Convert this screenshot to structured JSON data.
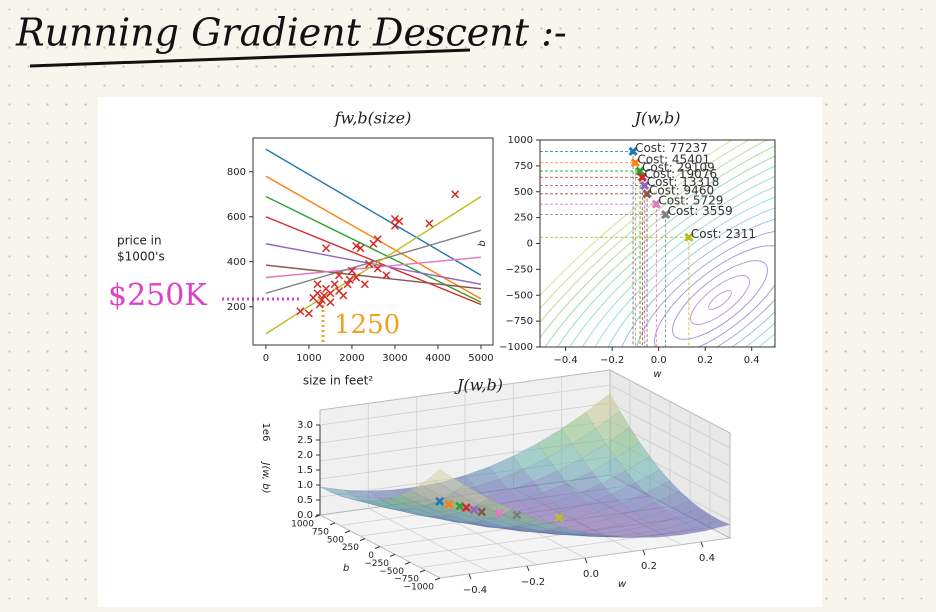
{
  "header": {
    "title": "Running Gradient Descent :-"
  },
  "annotations": {
    "price": "$250K",
    "size": "1250"
  },
  "chart_data": [
    {
      "type": "scatter",
      "title": "fw,b(size)",
      "xlabel": "size in feet²",
      "ylabel": [
        "price in",
        "$1000's"
      ],
      "xlim": [
        -300,
        5280
      ],
      "ylim": [
        30,
        950
      ],
      "xticks": [
        0,
        1000,
        2000,
        3000,
        4000,
        5000
      ],
      "yticks": [
        200,
        400,
        600,
        800
      ],
      "series": [
        {
          "color": "#1f77b4",
          "x": [
            0,
            5000
          ],
          "values": [
            900,
            340
          ]
        },
        {
          "color": "#ff7f0e",
          "x": [
            0,
            5000
          ],
          "values": [
            780,
            235
          ]
        },
        {
          "color": "#2ca02c",
          "x": [
            0,
            5000
          ],
          "values": [
            690,
            220
          ]
        },
        {
          "color": "#d62728",
          "x": [
            0,
            5000
          ],
          "values": [
            600,
            210
          ]
        },
        {
          "color": "#9467bd",
          "x": [
            0,
            5000
          ],
          "values": [
            480,
            300
          ]
        },
        {
          "color": "#8c564b",
          "x": [
            0,
            5000
          ],
          "values": [
            385,
            280
          ]
        },
        {
          "color": "#e377c2",
          "x": [
            0,
            5000
          ],
          "values": [
            330,
            420
          ]
        },
        {
          "color": "#7f7f7f",
          "x": [
            0,
            5000
          ],
          "values": [
            260,
            540
          ]
        },
        {
          "color": "#bcbd22",
          "x": [
            0,
            5000
          ],
          "values": [
            80,
            690
          ]
        }
      ],
      "points": {
        "color": "#d62728",
        "x": [
          800,
          1000,
          1100,
          1200,
          1200,
          1250,
          1300,
          1350,
          1400,
          1500,
          1500,
          1600,
          1700,
          1700,
          1800,
          1900,
          1950,
          2000,
          2100,
          2100,
          2200,
          2300,
          2400,
          2500,
          2600,
          2600,
          1400,
          3000,
          3000,
          3100,
          3800,
          4400,
          2800
        ],
        "y": [
          180,
          170,
          240,
          260,
          300,
          210,
          230,
          250,
          280,
          220,
          260,
          300,
          270,
          340,
          250,
          300,
          320,
          360,
          330,
          470,
          460,
          300,
          390,
          480,
          500,
          370,
          460,
          560,
          590,
          580,
          570,
          700,
          340
        ]
      }
    },
    {
      "type": "contour",
      "title": "J(w,b)",
      "xlabel": "w",
      "ylabel": "b",
      "xlim": [
        -0.51,
        0.5
      ],
      "ylim": [
        -1000,
        1000
      ],
      "xticks": [
        {
          "value": -0.4,
          "label": "−0.4"
        },
        {
          "value": -0.2,
          "label": "−0.2"
        },
        {
          "value": 0,
          "label": "0.0"
        },
        0.2,
        0.4
      ],
      "yticks": [
        {
          "value": -1000,
          "label": "−1000"
        },
        {
          "value": -750,
          "label": "−750"
        },
        {
          "value": -500,
          "label": "−500"
        },
        {
          "value": -250,
          "label": "−250"
        },
        0,
        250,
        500,
        750,
        1000
      ],
      "colors": [
        "#1f77b4",
        "#ff7f0e",
        "#2ca02c",
        "#d62728",
        "#9467bd",
        "#8c564b",
        "#e377c2",
        "#7f7f7f",
        "#bcbd22"
      ],
      "x": [
        -0.11,
        -0.1,
        -0.08,
        -0.07,
        -0.06,
        -0.05,
        -0.01,
        0.03,
        0.13
      ],
      "values": [
        890,
        780,
        700,
        640,
        560,
        480,
        380,
        280,
        60
      ],
      "point_labels": [
        "Cost: 77237",
        "Cost: 45401",
        "Cost: 29109",
        "Cost: 19076",
        "Cost: 13318",
        "Cost: 9460",
        "Cost: 5729",
        "Cost: 3559",
        "Cost: 2311"
      ]
    },
    {
      "type": "surface3d",
      "title": "J(w,b)",
      "xlabel": "w",
      "ylabel": "b",
      "zlabel": "J(w, b)",
      "zoffset": "1e6",
      "xlim": [
        -0.5,
        0.5
      ],
      "ylim": [
        -1000,
        1000
      ],
      "xticks": [
        {
          "value": -0.4,
          "label": "−0.4"
        },
        {
          "value": -0.2,
          "label": "−0.2"
        },
        {
          "value": 0,
          "label": "0.0"
        },
        0.2,
        0.4
      ],
      "yticks": [
        1000,
        750,
        500,
        250,
        0,
        {
          "value": -250,
          "label": "−250"
        },
        {
          "value": -500,
          "label": "−500"
        },
        {
          "value": -750,
          "label": "−750"
        },
        {
          "value": -1000,
          "label": "−1000"
        }
      ],
      "zticks": [
        {
          "value": 0,
          "label": "0.0"
        },
        0.5,
        {
          "value": 1,
          "label": "1.0"
        },
        1.5,
        {
          "value": 2,
          "label": "2.0"
        },
        2.5,
        {
          "value": 3,
          "label": "3.0"
        }
      ]
    }
  ]
}
